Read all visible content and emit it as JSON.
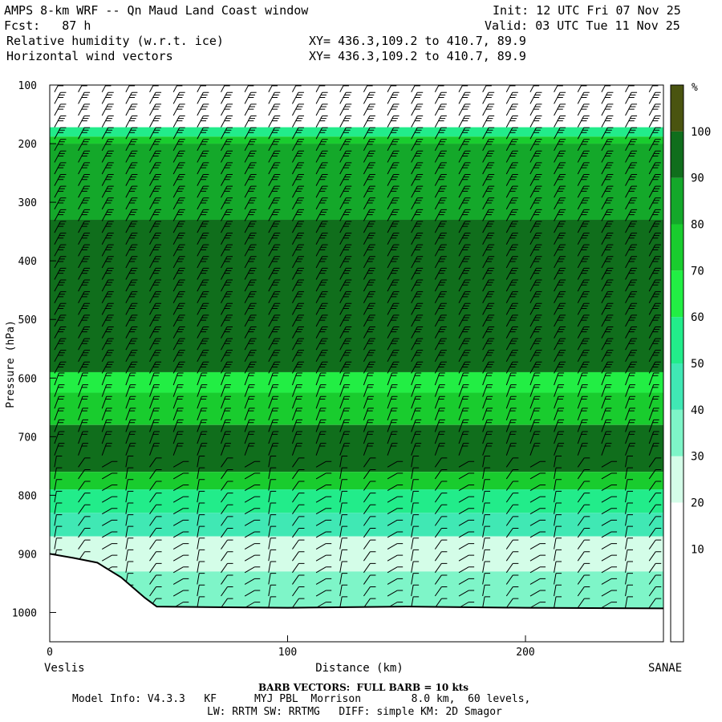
{
  "header": {
    "title": "AMPS 8-km WRF -- Qn Maud Land Coast window",
    "fcst": "Fcst:   87 h",
    "field1": "Relative humidity (w.r.t. ice)",
    "field2": "Horizontal wind vectors",
    "init": "Init: 12 UTC Fri 07 Nov 25",
    "valid": "Valid: 03 UTC Tue 11 Nov 25",
    "xy1": "XY= 436.3,109.2 to 410.7, 89.9",
    "xy2": "XY= 436.3,109.2 to 410.7, 89.9"
  },
  "footer": {
    "barb": "BARB VECTORS:  FULL BARB = 10 kts",
    "model1": "Model Info: V4.3.3   KF      MYJ PBL  Morrison        8.0 km,  60 levels,",
    "model2": "LW: RRTM SW: RRTMG   DIFF: simple KM: 2D Smagor"
  },
  "chart_data": {
    "type": "heatmap",
    "xlabel": "Distance (km)",
    "ylabel": "Pressure (hPa)",
    "xlim": [
      0,
      258
    ],
    "ylim": [
      1050,
      100
    ],
    "x_ticks": [
      0,
      100,
      200
    ],
    "y_ticks": [
      100,
      200,
      300,
      400,
      500,
      600,
      700,
      800,
      900,
      1000
    ],
    "left_endpoint": "Veslis",
    "right_endpoint": "SANAE",
    "colorbar": {
      "unit": "%",
      "levels": [
        10,
        20,
        30,
        40,
        50,
        60,
        70,
        80,
        90,
        100
      ],
      "colors": [
        "#ffffff",
        "#ffffff",
        "#ffffff",
        "#d4fde8",
        "#7ef5c8",
        "#40e8b4",
        "#22ec8a",
        "#22ee44",
        "#19cc2e",
        "#14a82a",
        "#106e1c",
        "#4a5410"
      ]
    },
    "rh_layers": [
      {
        "top_hpa": 100,
        "bottom_hpa": 172,
        "rh": 20
      },
      {
        "top_hpa": 172,
        "bottom_hpa": 188,
        "rh": 60
      },
      {
        "top_hpa": 188,
        "bottom_hpa": 200,
        "rh": 85
      },
      {
        "top_hpa": 200,
        "bottom_hpa": 330,
        "rh": 95
      },
      {
        "top_hpa": 330,
        "bottom_hpa": 590,
        "rh": 105
      },
      {
        "top_hpa": 590,
        "bottom_hpa": 625,
        "rh": 75
      },
      {
        "top_hpa": 625,
        "bottom_hpa": 680,
        "rh": 85
      },
      {
        "top_hpa": 680,
        "bottom_hpa": 760,
        "rh": 105
      },
      {
        "top_hpa": 760,
        "bottom_hpa": 790,
        "rh": 85
      },
      {
        "top_hpa": 790,
        "bottom_hpa": 830,
        "rh": 65
      },
      {
        "top_hpa": 830,
        "bottom_hpa": 870,
        "rh": 50
      },
      {
        "top_hpa": 870,
        "bottom_hpa": 930,
        "rh": 35
      },
      {
        "top_hpa": 930,
        "bottom_hpa": 1000,
        "rh": 45
      }
    ],
    "terrain_hpa": [
      [
        0,
        900
      ],
      [
        10,
        907
      ],
      [
        20,
        915
      ],
      [
        30,
        940
      ],
      [
        40,
        975
      ],
      [
        45,
        990
      ],
      [
        100,
        992
      ],
      [
        150,
        990
      ],
      [
        200,
        992
      ],
      [
        258,
        993
      ]
    ]
  }
}
